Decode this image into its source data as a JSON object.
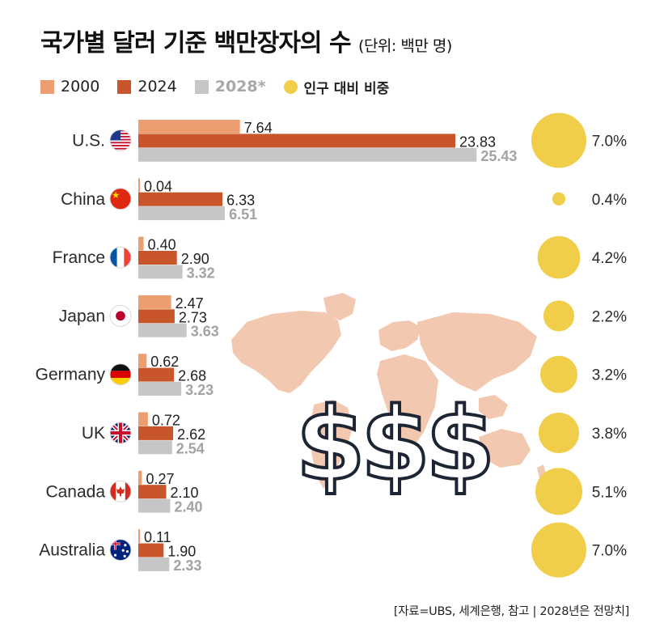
{
  "chart_data": {
    "type": "bar",
    "orientation": "horizontal",
    "title": "국가별 달러 기준 백만장자의 수",
    "unit_note": "(단위: 백만 명)",
    "categories": [
      "U.S.",
      "China",
      "France",
      "Japan",
      "Germany",
      "UK",
      "Canada",
      "Australia"
    ],
    "series": [
      {
        "name": "2000",
        "color": "#ec9e70",
        "values": [
          7.64,
          0.04,
          0.4,
          2.47,
          0.62,
          0.72,
          0.27,
          0.11
        ],
        "labels": [
          "7.64",
          "0.04",
          "0.40",
          "2.47",
          "0.62",
          "0.72",
          "0.27",
          "0.11"
        ]
      },
      {
        "name": "2024",
        "color": "#c9552a",
        "values": [
          23.83,
          6.33,
          2.9,
          2.73,
          2.68,
          2.62,
          2.1,
          1.9
        ],
        "labels": [
          "23.83",
          "6.33",
          "2.90",
          "2.73",
          "2.68",
          "2.62",
          "2.10",
          "1.90"
        ]
      },
      {
        "name": "2028",
        "legend_label": "2028*",
        "color": "#c6c6c6",
        "values": [
          25.43,
          6.51,
          3.32,
          3.63,
          3.23,
          2.54,
          2.4,
          2.33
        ],
        "labels": [
          "25.43",
          "6.51",
          "3.32",
          "3.63",
          "3.23",
          "2.54",
          "2.40",
          "2.33"
        ]
      }
    ],
    "population_share": {
      "name": "인구 대비 비중",
      "color": "#f0ce4a",
      "values": [
        7.0,
        0.4,
        4.2,
        2.2,
        3.2,
        3.8,
        5.1,
        7.0
      ],
      "labels": [
        "7.0%",
        "0.4%",
        "4.2%",
        "2.2%",
        "3.2%",
        "3.8%",
        "5.1%",
        "7.0%"
      ]
    },
    "decoration": {
      "dollar_signs": "$$$"
    },
    "source": "[자료=UBS, 세계은행, 참고 | 2028년은 전망치]"
  }
}
